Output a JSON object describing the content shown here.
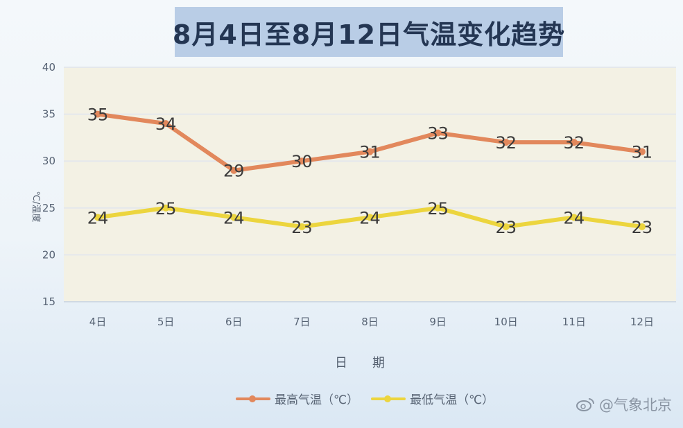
{
  "chart_data": {
    "type": "line",
    "title": "8月4日至8月12日气温变化趋势",
    "categories": [
      "4日",
      "5日",
      "6日",
      "7日",
      "8日",
      "9日",
      "10日",
      "11日",
      "12日"
    ],
    "series": [
      {
        "name": "最高气温（℃）",
        "values": [
          35,
          34,
          29,
          30,
          31,
          33,
          32,
          32,
          31
        ],
        "color": "#e2885c"
      },
      {
        "name": "最低气温（℃）",
        "values": [
          24,
          25,
          24,
          23,
          24,
          25,
          23,
          24,
          23
        ],
        "color": "#ecd53e"
      }
    ],
    "xlabel": "日　　期",
    "ylabel": "℃/温度",
    "ylim": [
      15,
      40
    ],
    "yticks": [
      15,
      20,
      25,
      30,
      35,
      40
    ],
    "grid": true,
    "legend_position": "bottom"
  },
  "watermark": {
    "icon": "weibo-icon",
    "text": "@气象北京"
  }
}
